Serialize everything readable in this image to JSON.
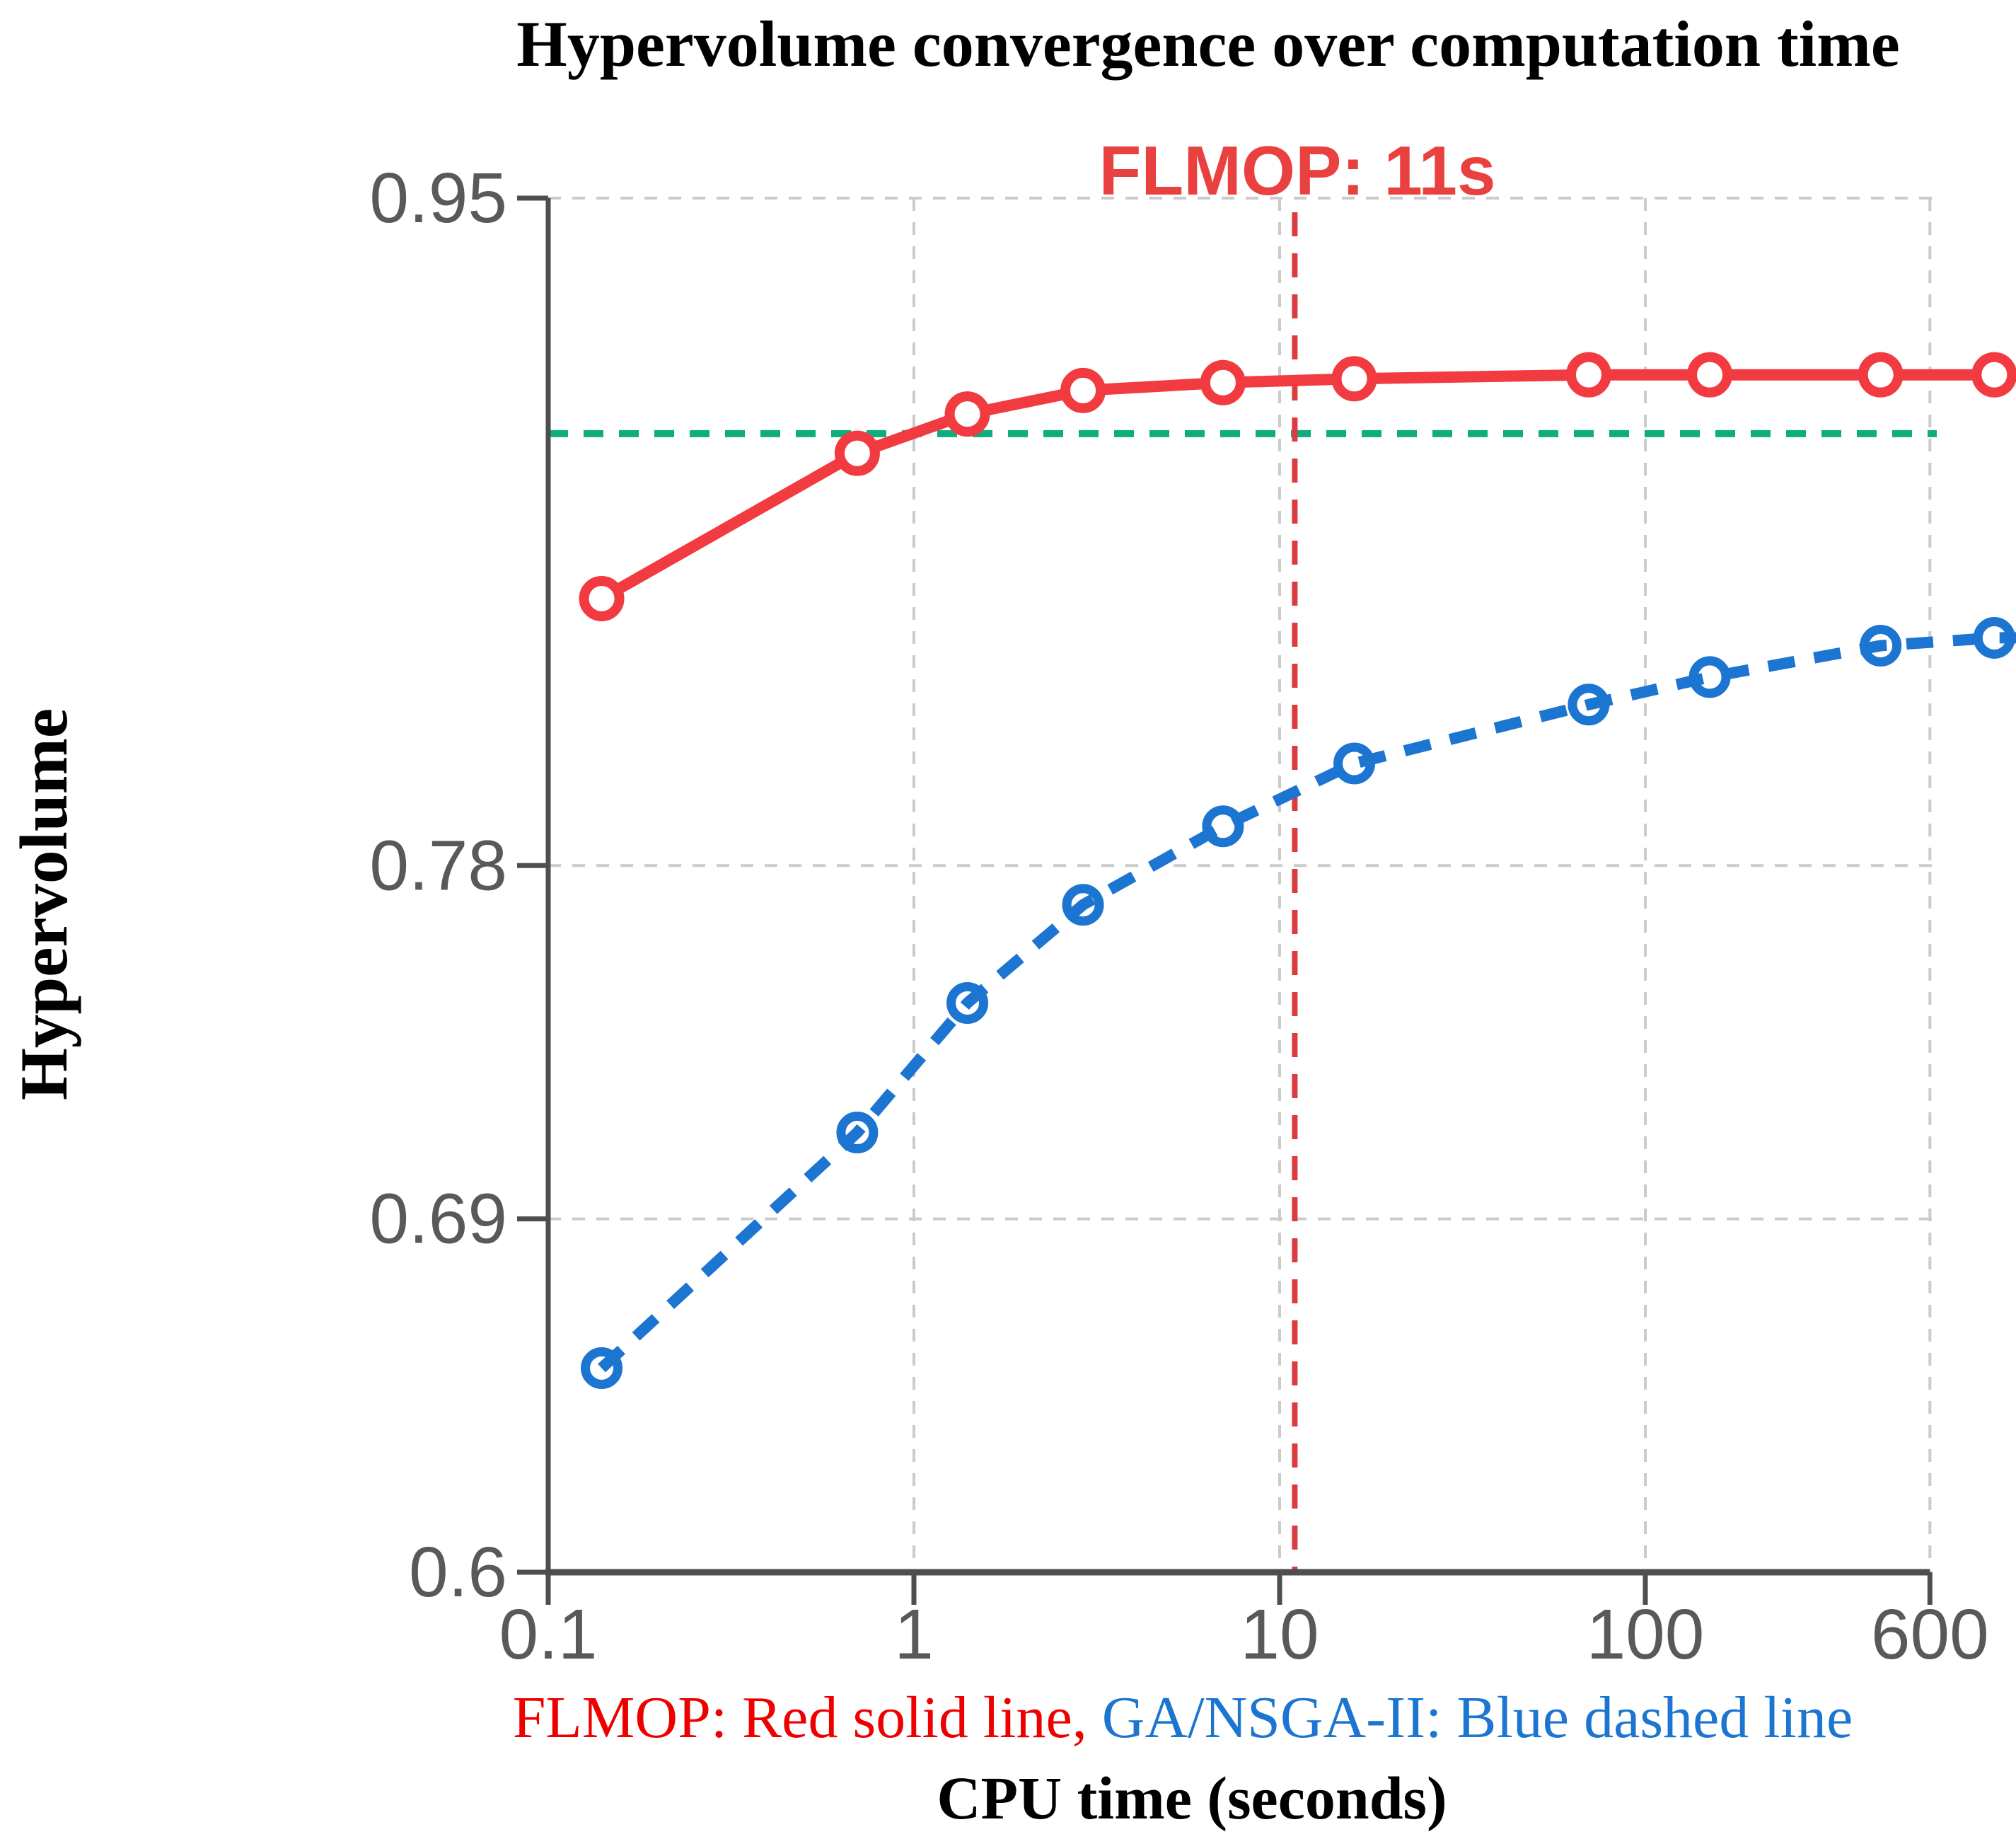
{
  "chart_data": {
    "type": "line",
    "title": "Hypervolume convergence over computation time",
    "xlabel": "CPU time (seconds)",
    "ylabel": "Hypervolume",
    "x_scale": "log",
    "y_scale": "linear",
    "xlim": [
      0.1,
      1030
    ],
    "ylim": [
      0.6,
      0.95
    ],
    "x_axis_ticks": [
      {
        "value": 0.1,
        "label": "0.1"
      },
      {
        "value": 1,
        "label": "1"
      },
      {
        "value": 10,
        "label": "10"
      },
      {
        "value": 100,
        "label": "100"
      },
      {
        "value": 600,
        "label": "600"
      }
    ],
    "y_axis_ticks": [
      {
        "value": 0.6,
        "label": "0.6"
      },
      {
        "value": 0.69,
        "label": "0.69"
      },
      {
        "value": 0.78,
        "label": "0.78"
      },
      {
        "value": 0.95,
        "label": "0.95"
      }
    ],
    "grid": {
      "on": true,
      "style": "dashed",
      "color": "#CBCBCB",
      "x_values": [
        1,
        10,
        100,
        600
      ],
      "y_values": [
        0.69,
        0.78,
        0.95
      ]
    },
    "x": [
      0.14,
      0.7,
      1.4,
      2.9,
      7,
      16,
      70,
      150,
      440,
      900
    ],
    "series": [
      {
        "name": "FLMOP",
        "line_style": "solid",
        "marker": "open-circle",
        "color": "#F23B41",
        "values": [
          0.848,
          0.885,
          0.895,
          0.901,
          0.903,
          0.904,
          0.905,
          0.905,
          0.905,
          0.905
        ]
      },
      {
        "name": "GA/NSGA-II",
        "line_style": "dashed",
        "marker": "open-circle",
        "color": "#1C75D0",
        "values": [
          0.652,
          0.712,
          0.745,
          0.77,
          0.79,
          0.806,
          0.821,
          0.828,
          0.836,
          0.838
        ]
      }
    ],
    "reference_lines": {
      "target_hline": {
        "value": 0.89,
        "color": "#0EAD7B",
        "style": "dashed"
      },
      "time_vline": {
        "value": 11,
        "color": "#DC3C40",
        "style": "dashed",
        "label": "FLMOP: 11s",
        "label_color": "#E94140"
      }
    },
    "legend_note": {
      "flmop_text": "FLMOP: Red solid line,",
      "ga_text": " GA/NSGA-II: Blue dashed line",
      "flmop_color": "#EE0000",
      "ga_color": "#1C75D0"
    },
    "axis_color": "#4E4E4E",
    "tick_label_color": "#595959"
  }
}
